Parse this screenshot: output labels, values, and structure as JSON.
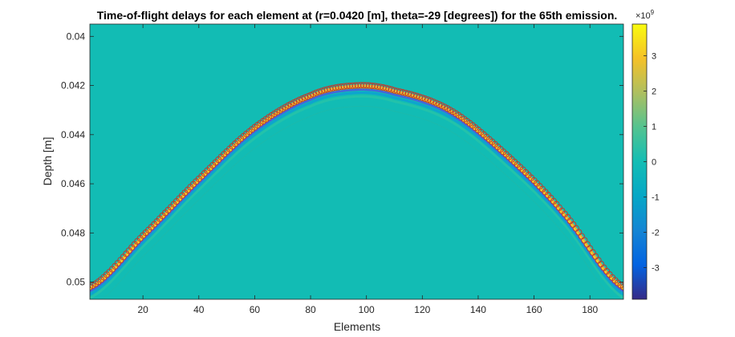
{
  "chart_data": {
    "type": "heatmap",
    "title": "Time-of-flight delays for each element at (r=0.0420 [m], theta=-29 [degrees]) for the 65th emission.",
    "xlabel": "Elements",
    "ylabel": "Depth [m]",
    "xlim": [
      1,
      192
    ],
    "ylim": [
      0.0395,
      0.0507
    ],
    "y_reversed": true,
    "xticks": [
      "20",
      "40",
      "60",
      "80",
      "100",
      "120",
      "140",
      "160",
      "180"
    ],
    "yticks": [
      "0.04",
      "0.042",
      "0.044",
      "0.046",
      "0.048",
      "0.05"
    ],
    "colorbar": {
      "range": [
        -3900000000.0,
        3900000000.0
      ],
      "ticks": [
        "3",
        "2",
        "1",
        "0",
        "-1",
        "-2",
        "-3"
      ],
      "exponent_base": "×10",
      "exponent_power": "9",
      "colormap": "parula"
    },
    "delay_curve": {
      "marker": "circle",
      "marker_color": "#c0392b",
      "x": [
        1,
        20,
        40,
        60,
        80,
        96,
        110,
        130,
        150,
        170,
        192
      ],
      "y": [
        0.0502,
        0.0481,
        0.0458,
        0.0437,
        0.0424,
        0.042,
        0.0422,
        0.043,
        0.0448,
        0.0471,
        0.0502
      ]
    }
  }
}
